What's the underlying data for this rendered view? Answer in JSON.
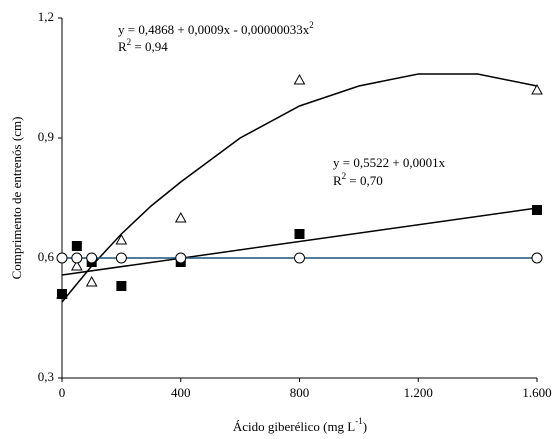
{
  "chart_data": {
    "type": "scatter",
    "x_label": "Ácido giberélico (mg L",
    "x_label_sup": "-1",
    "x_label_end": ")",
    "y_label": "Comprimento de entrenós (cm)",
    "x": [
      0,
      50,
      100,
      200,
      400,
      800,
      1600
    ],
    "series": [
      {
        "marker": "triangle",
        "color": "#000000",
        "values": [
          0.51,
          0.58,
          0.54,
          0.645,
          0.7,
          1.045,
          1.02
        ]
      },
      {
        "marker": "square",
        "color": "#000000",
        "values": [
          0.51,
          0.63,
          0.59,
          0.53,
          0.59,
          0.66,
          0.72
        ]
      },
      {
        "marker": "circle",
        "color": "#000000",
        "line_color": "#1f4e79",
        "values": [
          0.6,
          0.6,
          0.6,
          0.6,
          0.6,
          0.6,
          0.6
        ]
      }
    ],
    "trend_lines": [
      {
        "x": [
          0,
          100,
          200,
          300,
          400,
          600,
          800,
          1000,
          1200,
          1400,
          1600
        ],
        "values": [
          0.49,
          0.58,
          0.66,
          0.73,
          0.79,
          0.9,
          0.98,
          1.03,
          1.06,
          1.06,
          1.03
        ],
        "equation": "y = 0,4868 + 0,0009x - 0,00000033x",
        "equation_sup": "2",
        "r2_prefix": "R",
        "r2_sup": "2",
        "r2_value": " = 0,94"
      },
      {
        "x": [
          0,
          1600
        ],
        "values": [
          0.5575,
          0.725
        ],
        "equation": "y = 0,5522 + 0,0001x",
        "r2_prefix": "R",
        "r2_sup": "2",
        "r2_value": " = 0,70"
      }
    ],
    "xlim": [
      0,
      1600
    ],
    "xticks": [
      0,
      400,
      800,
      {
        "value": 1200,
        "label": "1.200"
      },
      {
        "value": 1600,
        "label": "1.600"
      }
    ],
    "ylim": [
      0.3,
      1.2
    ],
    "yticks": [
      {
        "value": 0.3,
        "label": "0,3"
      },
      {
        "value": 0.6,
        "label": "0,6"
      },
      {
        "value": 0.9,
        "label": "0,9"
      },
      {
        "value": 1.2,
        "label": "1,2"
      }
    ]
  }
}
